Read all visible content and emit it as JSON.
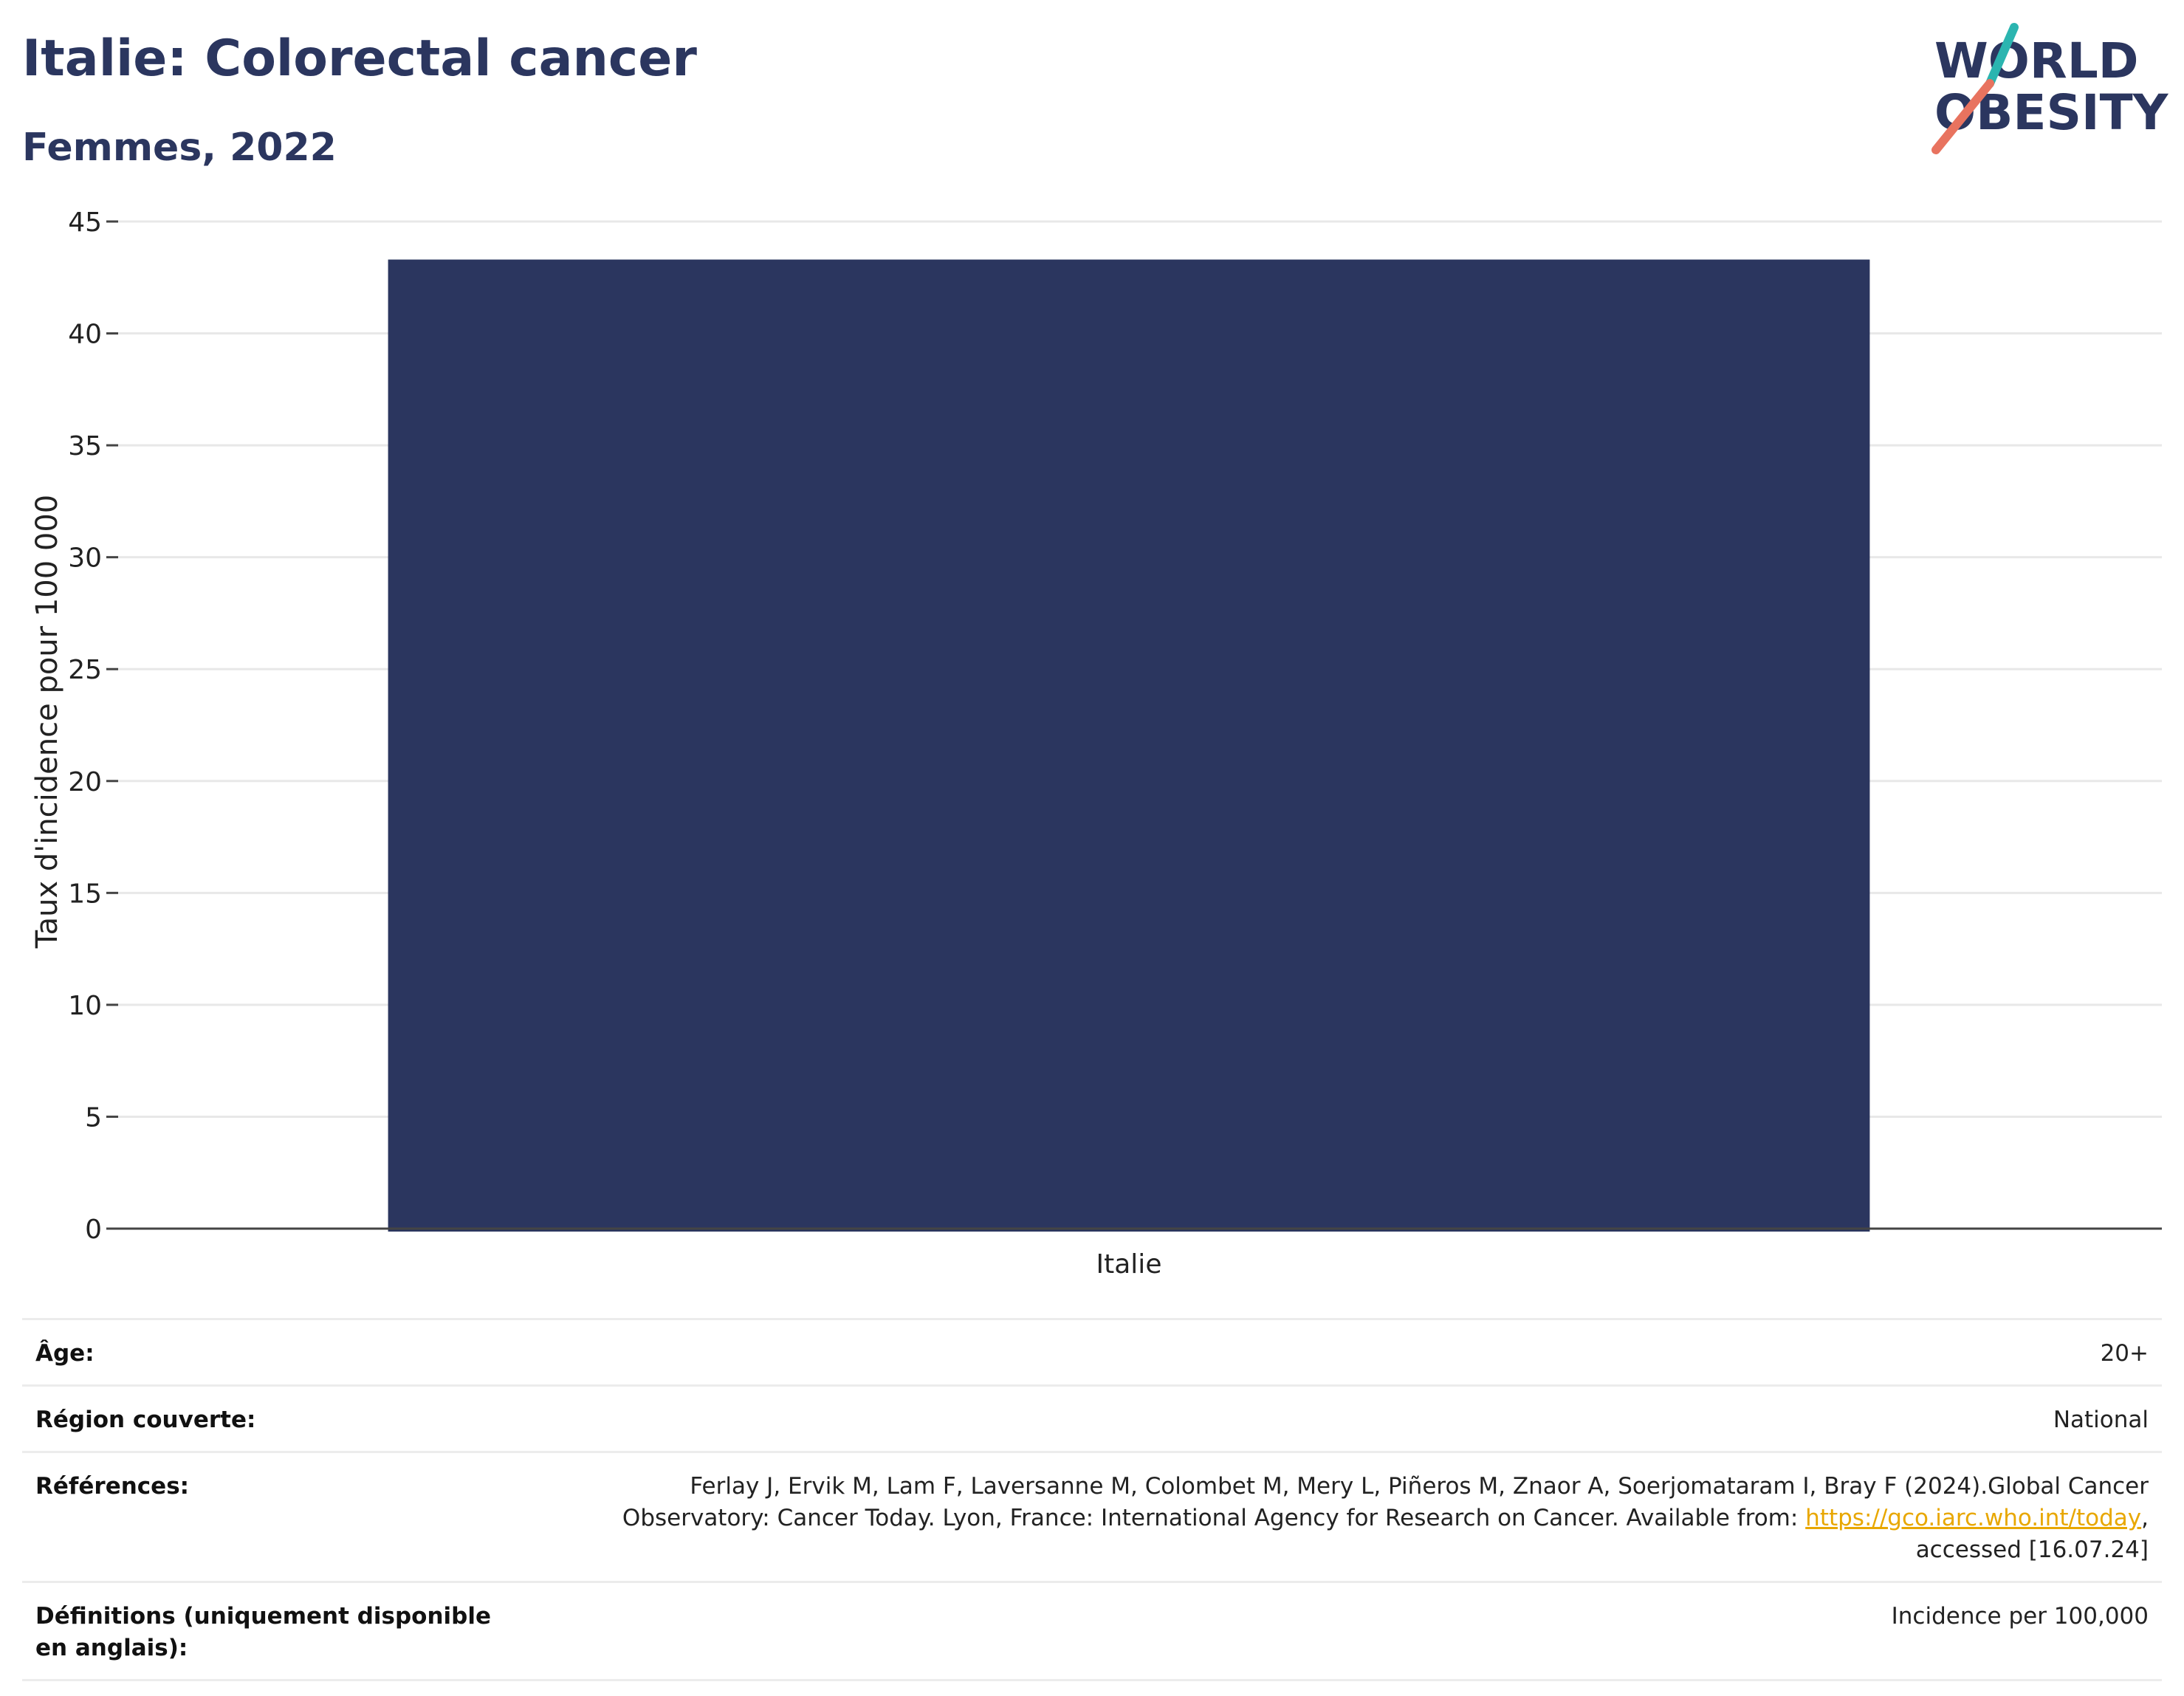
{
  "header": {
    "title": "Italie: Colorectal cancer",
    "subtitle": "Femmes, 2022"
  },
  "logo": {
    "line1": "WORLD",
    "line2": "OBESITY",
    "text_color": "#2b365f",
    "accent_teal": "#2bb5b0",
    "accent_coral": "#e8735f"
  },
  "chart_data": {
    "type": "bar",
    "categories": [
      "Italie"
    ],
    "values": [
      43.3
    ],
    "title": "Italie: Colorectal cancer",
    "subtitle": "Femmes, 2022",
    "xlabel": "",
    "ylabel": "Taux d'incidence pour 100 000",
    "ylim": [
      0,
      45
    ],
    "yticks": [
      0,
      5,
      10,
      15,
      20,
      25,
      30,
      35,
      40,
      45
    ],
    "bar_color": "#2b365f",
    "grid": true,
    "legend": "none"
  },
  "info": {
    "rows": [
      {
        "key": "Âge:",
        "value": "20+"
      },
      {
        "key": "Région couverte:",
        "value": "National"
      },
      {
        "key": "Références:",
        "value_prefix": "Ferlay J, Ervik M, Lam F, Laversanne M, Colombet M, Mery L, Piñeros M, Znaor A, Soerjomataram I, Bray F (2024).Global Cancer Observatory: Cancer Today. Lyon, France: International Agency for Research on Cancer. Available from: ",
        "link": "https://gco.iarc.who.int/today",
        "value_suffix": ", accessed [16.07.24]"
      },
      {
        "key": "Définitions (uniquement disponible en anglais):",
        "value": "Incidence per 100,000"
      }
    ]
  }
}
